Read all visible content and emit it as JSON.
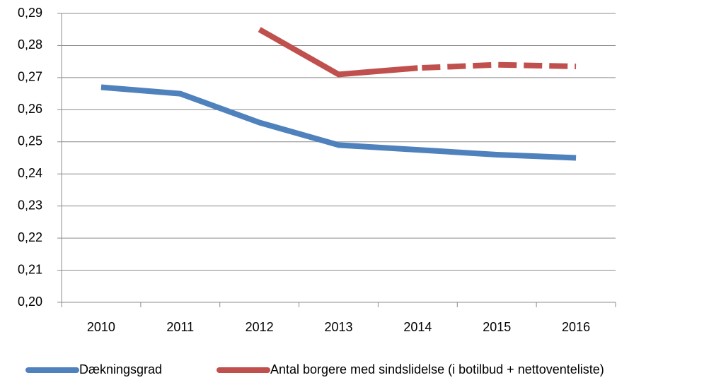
{
  "chart_data": {
    "type": "line",
    "categories": [
      "2010",
      "2011",
      "2012",
      "2013",
      "2014",
      "2015",
      "2016"
    ],
    "series": [
      {
        "name": "Dækningsgrad",
        "color": "#4f81bd",
        "values": [
          0.267,
          0.265,
          0.256,
          0.249,
          0.2475,
          0.246,
          0.245
        ]
      },
      {
        "name": "Antal borgere med sindslidelse (i botilbud + nettoventeliste)",
        "color": "#c0504d",
        "values": [
          null,
          null,
          0.285,
          0.271,
          0.273,
          0.274,
          0.2735
        ],
        "dashed_from": 4
      }
    ],
    "ylim": [
      0.2,
      0.29
    ],
    "yticks": [
      {
        "value": 0.2,
        "label": "0,20"
      },
      {
        "value": 0.21,
        "label": "0,21"
      },
      {
        "value": 0.22,
        "label": "0,22"
      },
      {
        "value": 0.23,
        "label": "0,23"
      },
      {
        "value": 0.24,
        "label": "0,24"
      },
      {
        "value": 0.25,
        "label": "0,25"
      },
      {
        "value": 0.26,
        "label": "0,26"
      },
      {
        "value": 0.27,
        "label": "0,27"
      },
      {
        "value": 0.28,
        "label": "0,28"
      },
      {
        "value": 0.29,
        "label": "0,29"
      }
    ],
    "grid": true,
    "legend": "bottom"
  }
}
